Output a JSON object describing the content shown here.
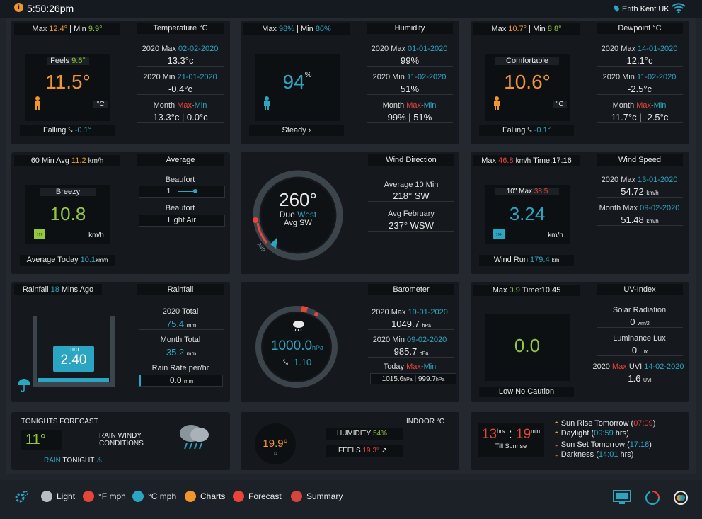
{
  "header": {
    "time": "5:50:26pm",
    "location": "Erith Kent UK"
  },
  "temperature": {
    "title": "Temperature °C",
    "max_label": "Max",
    "max": "12.4°",
    "min_label": "Min",
    "min": "9.9°",
    "feels_label": "Feels",
    "feels": "9.6°",
    "current": "11.5°",
    "unit": "°C",
    "trend": "Falling",
    "trend_value": "-0.1°",
    "year_max_label": "2020 Max",
    "year_max_date": "02-02-2020",
    "year_max": "13.3°c",
    "year_min_label": "2020 Min",
    "year_min_date": "21-01-2020",
    "year_min": "-0.4°c",
    "month_label": "Month",
    "month_max_word": "Max",
    "month_min_word": "Min",
    "month_values": "13.3°c | 0.0°c"
  },
  "humidity": {
    "title": "Humidity",
    "max_label": "Max",
    "max": "98%",
    "min_label": "Min",
    "min": "86%",
    "current": "94",
    "unit": "%",
    "trend": "Steady",
    "year_max_label": "2020 Max",
    "year_max_date": "01-01-2020",
    "year_max": "99%",
    "year_min_label": "2020 Min",
    "year_min_date": "11-02-2020",
    "year_min": "51%",
    "month_label": "Month",
    "month_max_word": "Max",
    "month_min_word": "Min",
    "month_values": "99% | 51%"
  },
  "dewpoint": {
    "title": "Dewpoint °C",
    "max_label": "Max",
    "max": "10.7°",
    "min_label": "Min",
    "min": "8.8°",
    "comfort": "Comfortable",
    "current": "10.6°",
    "unit": "°C",
    "trend": "Falling",
    "trend_value": "-0.1°",
    "year_max_label": "2020 Max",
    "year_max_date": "14-01-2020",
    "year_max": "12.1°c",
    "year_min_label": "2020 Min",
    "year_min_date": "11-02-2020",
    "year_min": "-2.5°c",
    "month_label": "Month",
    "month_max_word": "Max",
    "month_min_word": "Min",
    "month_values": "11.7°c | -2.5°c"
  },
  "wind_avg": {
    "title": "Average",
    "avg60_label": "60 Min Avg",
    "avg60": "11.2",
    "avg60_unit": "km/h",
    "description": "Breezy",
    "current": "10.8",
    "unit": "km/h",
    "beaufort_label": "Beaufort",
    "beaufort_value": "1",
    "beaufort_desc_label": "Beaufort",
    "beaufort_desc": "Light Air",
    "avg_today_label": "Average Today",
    "avg_today": "10.1",
    "avg_today_unit": "km/h"
  },
  "wind_dir": {
    "title": "Wind Direction",
    "degrees": "260°",
    "due_label": "Due",
    "due": "West",
    "avg_label": "Avg SW",
    "ring_label": "Avg",
    "avg10_label": "Average 10 Min",
    "avg10": "218°  SW",
    "avg_month_label": "Avg February",
    "avg_month": "237°  WSW"
  },
  "wind_speed": {
    "title": "Wind Speed",
    "max_label": "Max",
    "max": "46.8",
    "max_unit": "km/h",
    "time_label": "Time:",
    "time": "17:16",
    "ten_max_label": "10\" Max",
    "ten_max": "38.5",
    "current": "3.24",
    "unit": "km/h",
    "run_label": "Wind Run",
    "run": "179.4",
    "run_unit": "km",
    "year_max_label": "2020 Max",
    "year_max_date": "13-01-2020",
    "year_max": "54.72",
    "year_max_unit": "km/h",
    "month_max_label": "Month Max",
    "month_max_date": "09-02-2020",
    "month_max": "51.48",
    "month_max_unit": "km/h"
  },
  "rainfall": {
    "title": "Rainfall",
    "last_label": "Rainfall",
    "last_value": "18",
    "last_suffix": "Mins Ago",
    "gauge_unit": "mm",
    "gauge_value": "2.40",
    "year_total_label": "2020 Total",
    "year_total": "75.4",
    "year_total_unit": "mm",
    "month_total_label": "Month Total",
    "month_total": "35.2",
    "month_total_unit": "mm",
    "rate_label": "Rain Rate per/hr",
    "rate": "0.0",
    "rate_unit": "mm"
  },
  "barometer": {
    "title": "Barometer",
    "current": "1000.0",
    "unit": "hPa",
    "trend": "-1.10",
    "year_max_label": "2020 Max",
    "year_max_date": "19-01-2020",
    "year_max": "1049.7",
    "year_max_unit": "hPa",
    "year_min_label": "2020 Min",
    "year_min_date": "09-02-2020",
    "year_min": "985.7",
    "year_min_unit": "hPa",
    "today_label": "Today",
    "today_max_word": "Max",
    "today_min_word": "Min",
    "today_max": "1015.6",
    "today_min": "999.7",
    "today_unit": "hPa"
  },
  "uv": {
    "title": "UV-Index",
    "max_label": "Max",
    "max": "0.9",
    "time_label": "Time:",
    "time": "10:45",
    "current": "0.0",
    "caution": "Low No Caution",
    "solar_label": "Solar Radiation",
    "solar": "0",
    "solar_unit": "wm/2",
    "lux_label": "Luminance Lux",
    "lux": "0",
    "lux_unit": "Lux",
    "year_uvi_label": "2020",
    "year_uvi_max_word": "Max",
    "year_uvi_suffix": "UVI",
    "year_uvi_date": "14-02-2020",
    "year_uvi": "1.6",
    "year_uvi_unit": "UVI"
  },
  "forecast": {
    "title": "TONIGHTS FORECAST",
    "temp": "11°",
    "conditions_line1": "RAIN WINDY",
    "conditions_line2": "CONDITIONS",
    "footer_word": "RAIN",
    "footer_suffix": "TONIGHT"
  },
  "indoor": {
    "title": "INDOOR °C",
    "temp": "19.9°",
    "humidity_label": "HUMIDITY",
    "humidity": "54%",
    "feels_label": "FEELS",
    "feels": "19.3°"
  },
  "sun": {
    "hours": "13",
    "hours_unit": "hrs",
    "mins": "19",
    "mins_unit": "min",
    "till_label": "Till Sunrise",
    "rise_label": "Sun Rise Tomorrow",
    "rise": "07:09",
    "daylight_label": "Daylight",
    "daylight": "09:59",
    "daylight_unit": "hrs",
    "set_label": "Sun Set Tomorrow",
    "set": "17:18",
    "dark_label": "Darkness",
    "dark": "14:01",
    "dark_unit": "hrs"
  },
  "footer": {
    "light": "Light",
    "f_mph": "°F mph",
    "c_mph": "°C mph",
    "charts": "Charts",
    "forecast": "Forecast",
    "summary": "Summary"
  },
  "colors": {
    "orange": "#f0962a",
    "green": "#93c83a",
    "cyan": "#2aa6c3",
    "red": "#e8443a"
  }
}
